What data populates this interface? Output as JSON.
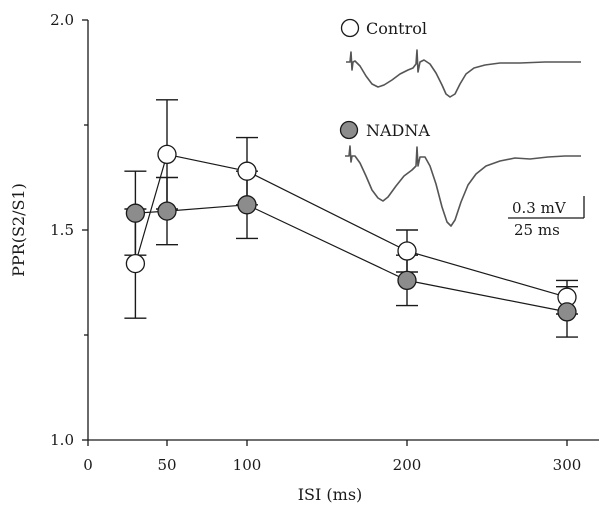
{
  "chart_data": {
    "type": "scatter",
    "xlabel": "ISI (ms)",
    "ylabel": "PPR(S2/S1)",
    "x_ticks": [
      "0",
      "50",
      "100",
      "200",
      "300"
    ],
    "y_ticks": [
      "1.0",
      "1.5",
      "2.0"
    ],
    "ylim": [
      1.0,
      2.0
    ],
    "grid": false,
    "legend_position": "top-right",
    "x": [
      30,
      50,
      100,
      200,
      300
    ],
    "series": [
      {
        "name": "Control",
        "marker": "open-circle",
        "values": [
          1.42,
          1.68,
          1.64,
          1.45,
          1.34
        ],
        "error": [
          0.13,
          0.13,
          0.08,
          0.05,
          0.04
        ]
      },
      {
        "name": "NADNA",
        "marker": "filled-circle",
        "color": "#8c8c8c",
        "values": [
          1.54,
          1.545,
          1.56,
          1.38,
          1.305
        ],
        "error": [
          0.1,
          0.08,
          0.08,
          0.06,
          0.06
        ]
      }
    ],
    "scale_bar": {
      "voltage_label": "0.3 mV",
      "time_label": "25 ms"
    }
  }
}
